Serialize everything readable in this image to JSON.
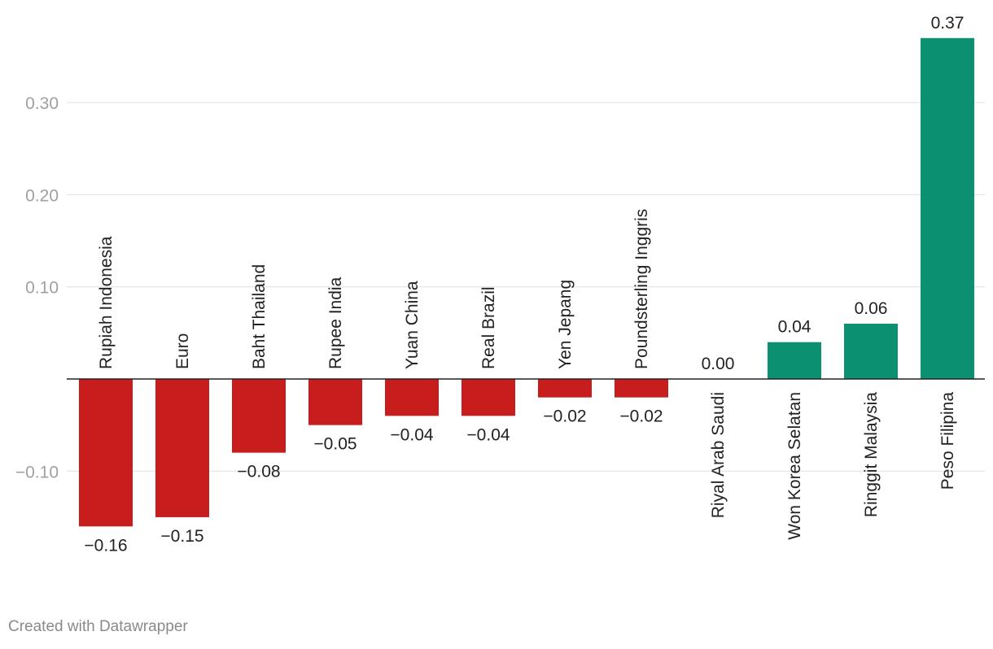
{
  "chart_data": {
    "type": "bar",
    "categories": [
      "Rupiah Indonesia",
      "Euro",
      "Baht Thailand",
      "Rupee India",
      "Yuan China",
      "Real Brazil",
      "Yen Jepang",
      "Poundsterling Inggris",
      "Riyal Arab Saudi",
      "Won Korea Selatan",
      "Ringgit Malaysia",
      "Peso Filipina"
    ],
    "values": [
      -0.16,
      -0.15,
      -0.08,
      -0.05,
      -0.04,
      -0.04,
      -0.02,
      -0.02,
      0.0,
      0.04,
      0.06,
      0.37
    ],
    "value_labels": [
      "−0.16",
      "−0.15",
      "−0.08",
      "−0.05",
      "−0.04",
      "−0.04",
      "−0.02",
      "−0.02",
      "0.00",
      "0.04",
      "0.06",
      "0.37"
    ],
    "yticks": [
      -0.1,
      0.1,
      0.2,
      0.3
    ],
    "ytick_labels": [
      "−0.10",
      "0.10",
      "0.20",
      "0.30"
    ],
    "ylim": [
      -0.19,
      0.37
    ],
    "grid": true,
    "colors": {
      "negative": "#c71e1d",
      "positive": "#0b9172",
      "grid": "#e0e0e0",
      "axis": "#222222"
    }
  },
  "footer": {
    "credit": "Created with Datawrapper"
  }
}
